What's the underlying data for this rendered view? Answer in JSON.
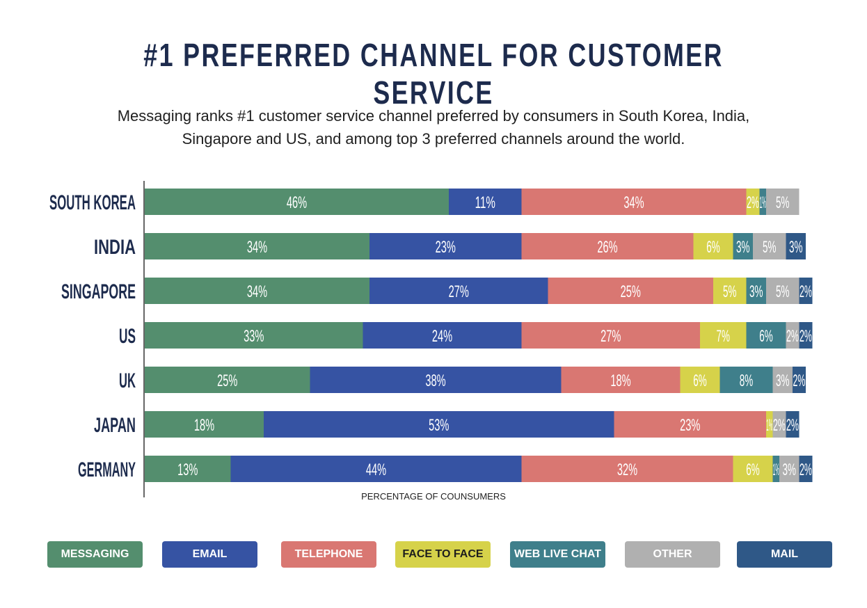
{
  "header": {
    "title": "#1 PREFERRED CHANNEL FOR CUSTOMER SERVICE",
    "subtitle_line1": "Messaging ranks #1 customer service channel preferred by consumers in South Korea, India,",
    "subtitle_line2": "Singapore and US, and among top 3 preferred channels around the world."
  },
  "chart_data": {
    "type": "bar",
    "orientation": "horizontal",
    "stacked": true,
    "title": "#1 PREFERRED CHANNEL FOR CUSTOMER SERVICE",
    "xlabel": "PERCENTAGE OF COUNSUMERS",
    "ylabel": "",
    "xlim": [
      0,
      100
    ],
    "categories": [
      "SOUTH KOREA",
      "INDIA",
      "SINGAPORE",
      "US",
      "UK",
      "JAPAN",
      "GERMANY"
    ],
    "series": [
      {
        "name": "MESSAGING",
        "color": "#548e6e",
        "values": [
          46,
          34,
          34,
          33,
          25,
          18,
          13
        ]
      },
      {
        "name": "EMAIL",
        "color": "#3653a3",
        "values": [
          11,
          23,
          27,
          24,
          38,
          53,
          44
        ]
      },
      {
        "name": "TELEPHONE",
        "color": "#d97772",
        "values": [
          34,
          26,
          25,
          27,
          18,
          23,
          32
        ]
      },
      {
        "name": "FACE TO FACE",
        "color": "#d6d24a",
        "values": [
          2,
          6,
          5,
          7,
          6,
          1,
          6
        ]
      },
      {
        "name": "WEB LIVE CHAT",
        "color": "#3f7f8b",
        "values": [
          1,
          3,
          3,
          6,
          8,
          0,
          1
        ]
      },
      {
        "name": "OTHER",
        "color": "#b0b0b0",
        "values": [
          5,
          5,
          5,
          2,
          3,
          2,
          3
        ]
      },
      {
        "name": "MAIL",
        "color": "#2f5887",
        "values": [
          0,
          3,
          2,
          2,
          2,
          2,
          2
        ]
      }
    ],
    "legend_position": "bottom"
  }
}
